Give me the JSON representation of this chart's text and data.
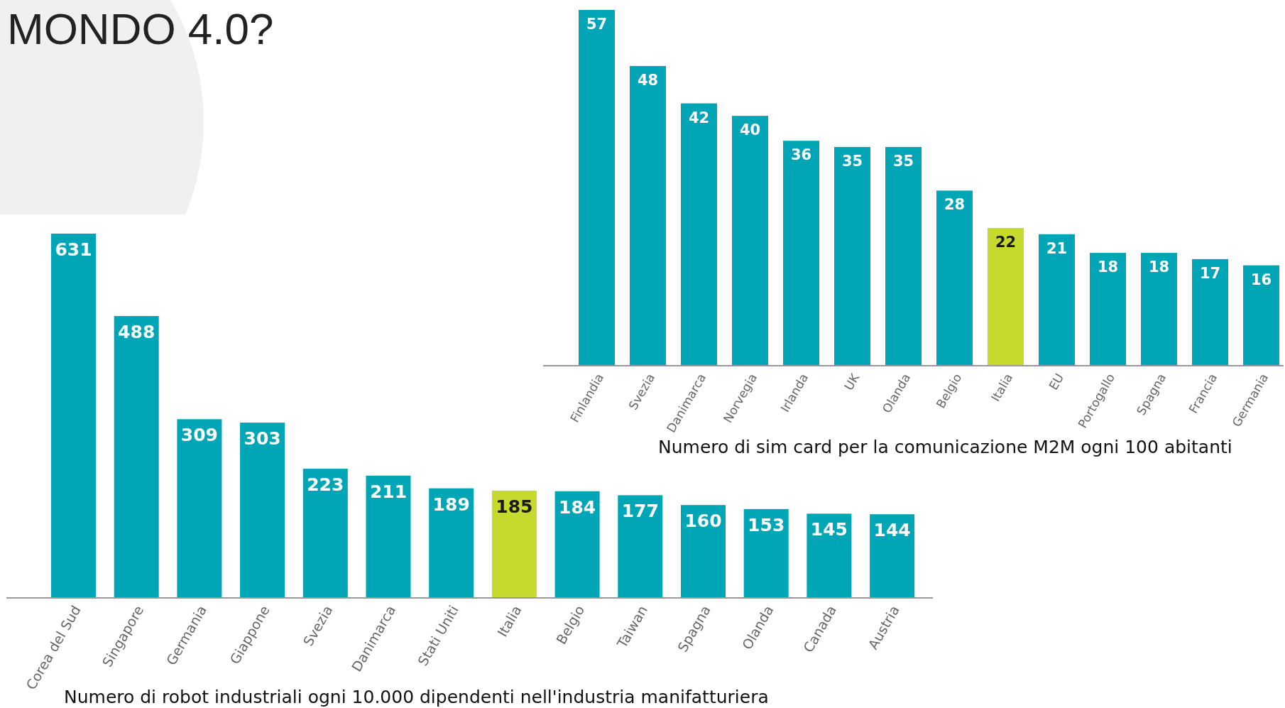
{
  "chart_data": [
    {
      "type": "bar",
      "title": "MONDO 4.0?",
      "categories": [
        "Corea del Sud",
        "Singapore",
        "Germania",
        "Giappone",
        "Svezia",
        "Danimarca",
        "Stati Uniti",
        "Italia",
        "Belgio",
        "Taiwan",
        "Spagna",
        "Olanda",
        "Canada",
        "Austria"
      ],
      "values": [
        631,
        488,
        309,
        303,
        223,
        211,
        189,
        185,
        184,
        177,
        160,
        153,
        145,
        144
      ],
      "colors": [
        "#00a6b6",
        "#00a6b6",
        "#00a6b6",
        "#00a6b6",
        "#00a6b6",
        "#00a6b6",
        "#00a6b6",
        "#c6d92e",
        "#00a6b6",
        "#00a6b6",
        "#00a6b6",
        "#00a6b6",
        "#00a6b6",
        "#00a6b6"
      ],
      "data_labels": true,
      "annotations": [
        "Numero di robot industriali ogni 10.000 dipendenti nell'industria manifatturiera"
      ]
    },
    {
      "type": "bar",
      "categories": [
        "Finlandia",
        "Svezia",
        "Danimarca",
        "Norvegia",
        "Irlanda",
        "UK",
        "Olanda",
        "Belgio",
        "Italia",
        "EU",
        "Portogallo",
        "Spagna",
        "Francia",
        "Germania"
      ],
      "values": [
        57,
        48,
        42,
        40,
        36,
        35,
        35,
        28,
        22,
        21,
        18,
        18,
        17,
        16
      ],
      "colors": [
        "#00a6b6",
        "#00a6b6",
        "#00a6b6",
        "#00a6b6",
        "#00a6b6",
        "#00a6b6",
        "#00a6b6",
        "#00a6b6",
        "#c6d92e",
        "#00a6b6",
        "#00a6b6",
        "#00a6b6",
        "#00a6b6",
        "#00a6b6"
      ],
      "data_labels": true,
      "annotations": [
        "Numero di sim card per la comunicazione M2M ogni 100 abitanti"
      ]
    }
  ]
}
